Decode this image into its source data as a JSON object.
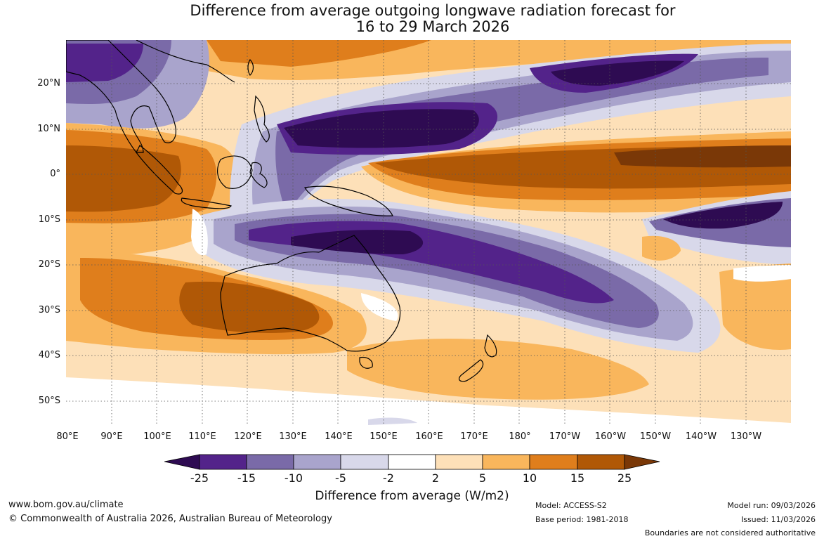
{
  "title_line1": "Difference from average outgoing longwave radiation forecast for",
  "title_line2": "16 to 29 March 2026",
  "lat_labels": [
    "20°N",
    "10°N",
    "0°",
    "10°S",
    "20°S",
    "30°S",
    "40°S",
    "50°S"
  ],
  "lon_labels": [
    "80°E",
    "90°E",
    "100°E",
    "110°E",
    "120°E",
    "130°E",
    "140°E",
    "150°E",
    "160°E",
    "170°E",
    "180°",
    "170°W",
    "160°W",
    "150°W",
    "140°W",
    "130°W"
  ],
  "colorbar": {
    "ticks": [
      "-25",
      "-15",
      "-10",
      "-5",
      "-2",
      "2",
      "5",
      "10",
      "15",
      "25"
    ],
    "colors": [
      "#2e0b52",
      "#53238a",
      "#7a6aa8",
      "#a9a4cc",
      "#d8d8ea",
      "#ffffff",
      "#fde0b8",
      "#f9b65c",
      "#df7e1c",
      "#b05806",
      "#7a3807"
    ],
    "title": "Difference from average (W/m2)"
  },
  "footer": {
    "website": "www.bom.gov.au/climate",
    "copyright": "© Commonwealth of Australia 2026, Australian Bureau of Meteorology",
    "model": "Model: ACCESS-S2",
    "base_period": "Base period: 1981-2018",
    "model_run": "Model run: 09/03/2026",
    "issued": "Issued: 11/03/2026",
    "disclaimer": "Boundaries are not considered authoritative"
  }
}
